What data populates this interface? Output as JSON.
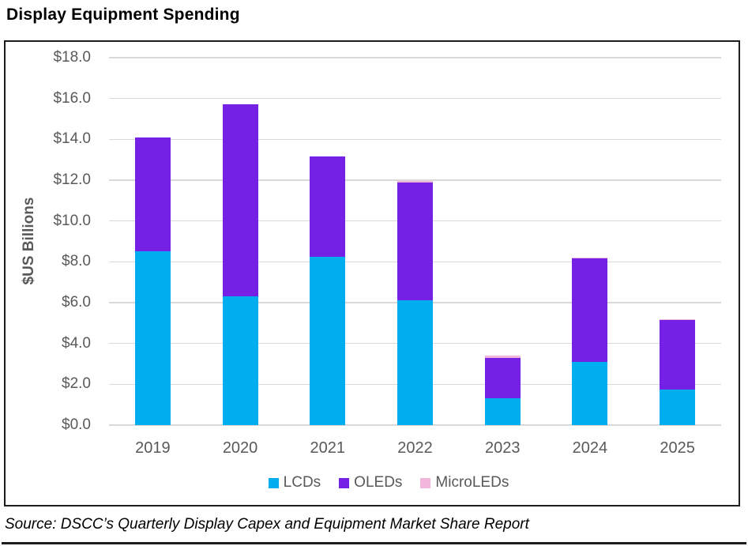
{
  "title": "Display Equipment Spending",
  "source_note": "Source: DSCC’s Quarterly Display Capex and Equipment Market Share Report",
  "colors": {
    "axis_text": "#595959",
    "gridline": "#d9d9d9",
    "chart_border": "#1c1c1c",
    "background": "#ffffff",
    "lcd": "#00aeef",
    "oled": "#7421e5",
    "microled": "#f2b5dc"
  },
  "chart_data": {
    "type": "bar",
    "stacked": true,
    "title": "Display Equipment Spending",
    "xlabel": "",
    "ylabel": "$US Billions",
    "categories": [
      "2019",
      "2020",
      "2021",
      "2022",
      "2023",
      "2024",
      "2025"
    ],
    "series": [
      {
        "name": "LCDs",
        "color": "#00aeef",
        "values": [
          8.5,
          6.3,
          8.25,
          6.1,
          1.3,
          3.1,
          1.75
        ]
      },
      {
        "name": "OLEDs",
        "color": "#7421e5",
        "values": [
          5.6,
          9.4,
          4.9,
          5.8,
          2.0,
          5.05,
          3.4
        ]
      },
      {
        "name": "MicroLEDs",
        "color": "#f2b5dc",
        "values": [
          0,
          0,
          0,
          0.05,
          0.1,
          0.05,
          0.05
        ]
      }
    ],
    "totals": [
      14.1,
      15.7,
      13.15,
      11.95,
      3.4,
      8.2,
      5.2
    ],
    "ylim": [
      0,
      18
    ],
    "ytick_step": 2,
    "ytick_labels": [
      "$0.0",
      "$2.0",
      "$4.0",
      "$6.0",
      "$8.0",
      "$10.0",
      "$12.0",
      "$14.0",
      "$16.0",
      "$18.0"
    ],
    "grid": true,
    "legend_position": "bottom"
  }
}
